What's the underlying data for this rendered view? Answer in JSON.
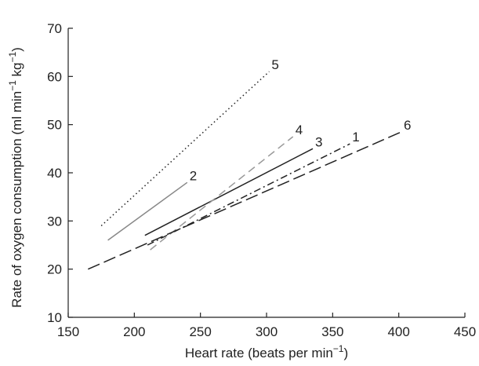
{
  "chart_data": {
    "type": "line",
    "title": "",
    "xlabel": "Heart rate (beats per min",
    "xlabel_sup": "−1",
    "xlabel_tail": ")",
    "ylabel_parts": [
      {
        "text": "Rate of oxygen consumption (ml min"
      },
      {
        "text": "−1",
        "sup": true
      },
      {
        "text": " kg"
      },
      {
        "text": "−1",
        "sup": true
      },
      {
        "text": ")"
      }
    ],
    "xlim": [
      150,
      450
    ],
    "ylim": [
      10,
      70
    ],
    "x_ticks": [
      150,
      200,
      250,
      300,
      350,
      400,
      450
    ],
    "y_ticks": [
      10,
      20,
      30,
      40,
      50,
      60,
      70
    ],
    "grid": false,
    "series": [
      {
        "name": "1",
        "x": [
          210,
          363
        ],
        "y": [
          25,
          46
        ],
        "color": "#222222",
        "dash": "dashdot"
      },
      {
        "name": "2",
        "x": [
          180,
          240
        ],
        "y": [
          26,
          38
        ],
        "color": "#888888",
        "dash": "solid"
      },
      {
        "name": "3",
        "x": [
          208,
          335
        ],
        "y": [
          27,
          45
        ],
        "color": "#222222",
        "dash": "solid"
      },
      {
        "name": "4",
        "x": [
          212,
          320
        ],
        "y": [
          24,
          47.5
        ],
        "color": "#999999",
        "dash": "dashed"
      },
      {
        "name": "5",
        "x": [
          175,
          302
        ],
        "y": [
          29,
          61
        ],
        "color": "#222222",
        "dash": "dotted"
      },
      {
        "name": "6",
        "x": [
          165,
          402
        ],
        "y": [
          20,
          48.5
        ],
        "color": "#222222",
        "dash": "longdash"
      }
    ]
  }
}
